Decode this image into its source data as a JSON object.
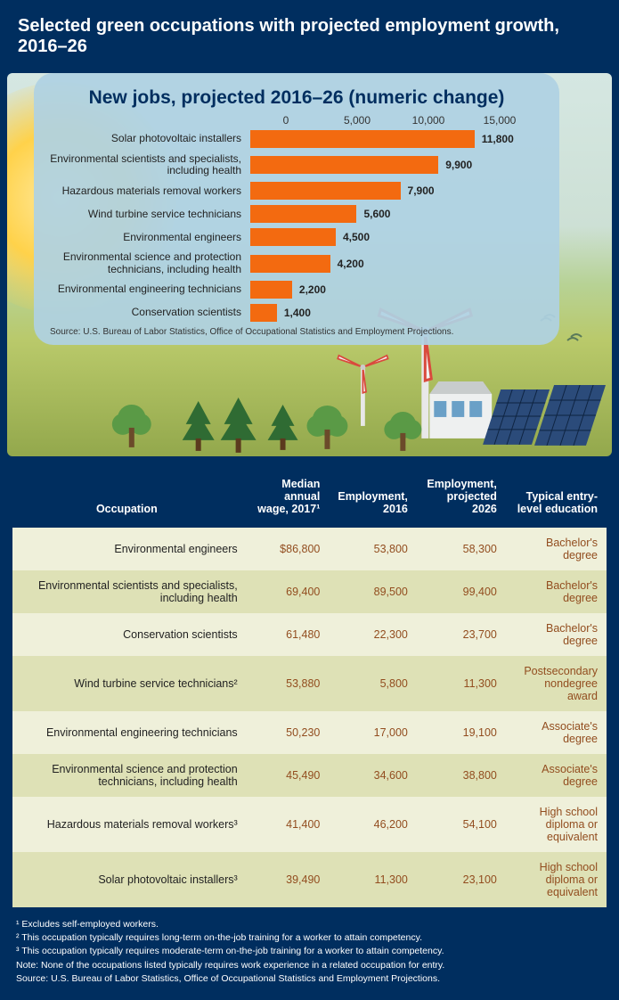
{
  "header": {
    "title": "Selected green occupations with projected employment growth, 2016–26"
  },
  "chart": {
    "type": "horizontal_bar",
    "title": "New jobs, projected 2016–26 (numeric change)",
    "xmax": 15000,
    "ticks": [
      "0",
      "5,000",
      "10,000",
      "15,000"
    ],
    "bar_color": "#f36a10",
    "panel_bg": "rgba(175,209,227,0.92)",
    "title_color": "#002e5f",
    "series": [
      {
        "label": "Solar photovoltaic installers",
        "value": 11800,
        "value_label": "11,800"
      },
      {
        "label": "Environmental scientists and specialists, including health",
        "value": 9900,
        "value_label": "9,900"
      },
      {
        "label": "Hazardous materials removal workers",
        "value": 7900,
        "value_label": "7,900"
      },
      {
        "label": "Wind turbine service technicians",
        "value": 5600,
        "value_label": "5,600"
      },
      {
        "label": "Environmental engineers",
        "value": 4500,
        "value_label": "4,500"
      },
      {
        "label": "Environmental science and protection technicians, including health",
        "value": 4200,
        "value_label": "4,200"
      },
      {
        "label": "Environmental engineering technicians",
        "value": 2200,
        "value_label": "2,200"
      },
      {
        "label": "Conservation scientists",
        "value": 1400,
        "value_label": "1,400"
      }
    ],
    "source": "Source: U.S. Bureau of Labor Statistics, Office of Occupational Statistics and Employment Projections."
  },
  "table": {
    "columns": [
      "Occupation",
      "Median annual wage, 2017¹",
      "Employment, 2016",
      "Employment, projected 2026",
      "Typical entry-level education"
    ],
    "rows": [
      [
        "Environmental engineers",
        "$86,800",
        "53,800",
        "58,300",
        "Bachelor's degree"
      ],
      [
        "Environmental scientists and specialists, including health",
        "69,400",
        "89,500",
        "99,400",
        "Bachelor's degree"
      ],
      [
        "Conservation scientists",
        "61,480",
        "22,300",
        "23,700",
        "Bachelor's degree"
      ],
      [
        "Wind turbine service technicians²",
        "53,880",
        "5,800",
        "11,300",
        "Postsecondary nondegree award"
      ],
      [
        "Environmental engineering technicians",
        "50,230",
        "17,000",
        "19,100",
        "Associate's degree"
      ],
      [
        "Environmental science and protection technicians, including health",
        "45,490",
        "34,600",
        "38,800",
        "Associate's degree"
      ],
      [
        "Hazardous materials removal workers³",
        "41,400",
        "46,200",
        "54,100",
        "High school diploma or equivalent"
      ],
      [
        "Solar photovoltaic installers³",
        "39,490",
        "11,300",
        "23,100",
        "High school diploma or equivalent"
      ]
    ],
    "col_widths": [
      "40%",
      "14%",
      "14%",
      "15%",
      "17%"
    ],
    "header_bg": "#002e5f",
    "row_odd_bg": "#eff0da",
    "row_even_bg": "#dee1b6",
    "value_color": "#924d1f"
  },
  "footnotes": [
    "¹ Excludes self-employed workers.",
    "² This occupation typically requires long-term on-the-job training for a worker to attain competency.",
    "³ This occupation typically requires moderate-term on-the-job training for a worker to attain competency.",
    "Note: None of the occupations listed typically requires work experience in a related occupation for entry.",
    "Source: U.S. Bureau of Labor Statistics, Office of Occupational Statistics and Employment Projections."
  ],
  "colors": {
    "page_bg": "#002e5f",
    "sun": "#ffd24a",
    "solar_panel": "#2b4b7a",
    "tree": "#2f6b33",
    "turbine": "#e8e8e8"
  }
}
